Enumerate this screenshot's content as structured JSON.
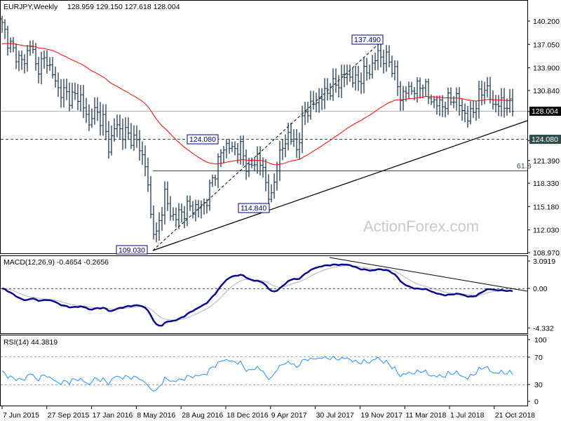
{
  "header": {
    "symbol_timeframe": "EURJPY,Weekly",
    "ohlc": "128.959 129.150 127.618 128.004"
  },
  "watermark": "ActionForex.com",
  "colors": {
    "bars": "#1c3a58",
    "ma": "#ff0000",
    "macd": "#0a0a8c",
    "signal": "#b4b4b4",
    "rsi": "#1e90ff",
    "current_price_bg": "#000000",
    "level_bg": "#2f4f4f"
  },
  "chart_data": [
    {
      "type": "ohlc",
      "title": "EURJPY,Weekly",
      "y_ticks": [
        "140.200",
        "137.050",
        "133.900",
        "130.840",
        "128.004",
        "124.080",
        "121.390",
        "118.330",
        "115.180",
        "112.030",
        "108.970"
      ],
      "ylim": [
        108.97,
        140.2
      ],
      "x_ticks": [
        "7 Jun 2015",
        "27 Sep 2015",
        "17 Jan 2016",
        "8 May 2016",
        "28 Aug 2016",
        "18 Dec 2016",
        "9 Apr 2017",
        "30 Jul 2017",
        "19 Nov 2017",
        "11 Mar 2018",
        "1 Jul 2018",
        "21 Oct 2018"
      ],
      "current_price": "128.004",
      "approx_closes": [
        [
          "2015-06-07",
          139.5
        ],
        [
          "2015-07-05",
          136
        ],
        [
          "2015-08-02",
          134.5
        ],
        [
          "2015-08-16",
          137.5
        ],
        [
          "2015-08-30",
          134
        ],
        [
          "2015-09-27",
          135
        ],
        [
          "2015-10-25",
          131
        ],
        [
          "2015-11-22",
          130
        ],
        [
          "2015-12-20",
          130
        ],
        [
          "2016-01-10",
          126
        ],
        [
          "2016-01-17",
          128
        ],
        [
          "2016-02-14",
          127
        ],
        [
          "2016-02-28",
          123
        ],
        [
          "2016-03-13",
          126
        ],
        [
          "2016-04-10",
          125
        ],
        [
          "2016-05-08",
          124
        ],
        [
          "2016-05-29",
          121
        ],
        [
          "2016-06-12",
          114
        ],
        [
          "2016-06-26",
          111
        ],
        [
          "2016-07-03",
          113
        ],
        [
          "2016-07-17",
          117
        ],
        [
          "2016-07-31",
          114
        ],
        [
          "2016-08-21",
          114
        ],
        [
          "2016-09-11",
          115
        ],
        [
          "2016-10-09",
          115
        ],
        [
          "2016-10-30",
          116
        ],
        [
          "2016-11-13",
          119
        ],
        [
          "2016-11-27",
          121
        ],
        [
          "2016-12-11",
          123.5
        ],
        [
          "2017-01-01",
          123
        ],
        [
          "2017-01-22",
          123
        ],
        [
          "2017-02-12",
          120
        ],
        [
          "2017-03-05",
          122
        ],
        [
          "2017-03-19",
          120
        ],
        [
          "2017-04-02",
          117
        ],
        [
          "2017-04-09",
          116
        ],
        [
          "2017-04-23",
          121
        ],
        [
          "2017-05-07",
          123
        ],
        [
          "2017-05-21",
          125
        ],
        [
          "2017-06-11",
          123
        ],
        [
          "2017-07-02",
          128
        ],
        [
          "2017-07-23",
          129
        ],
        [
          "2017-08-13",
          130
        ],
        [
          "2017-09-03",
          131
        ],
        [
          "2017-09-24",
          132
        ],
        [
          "2017-10-15",
          133
        ],
        [
          "2017-11-05",
          132
        ],
        [
          "2017-11-26",
          133
        ],
        [
          "2017-12-17",
          134
        ],
        [
          "2017-12-31",
          136
        ],
        [
          "2018-01-14",
          135
        ],
        [
          "2018-01-28",
          135
        ],
        [
          "2018-02-11",
          133
        ],
        [
          "2018-02-25",
          130
        ],
        [
          "2018-03-18",
          131
        ],
        [
          "2018-04-08",
          131
        ],
        [
          "2018-04-22",
          132
        ],
        [
          "2018-05-06",
          130
        ],
        [
          "2018-05-27",
          129
        ],
        [
          "2018-06-17",
          129
        ],
        [
          "2018-07-08",
          130
        ],
        [
          "2018-07-22",
          129
        ],
        [
          "2018-08-12",
          127
        ],
        [
          "2018-09-02",
          129
        ],
        [
          "2018-09-23",
          131.5
        ],
        [
          "2018-10-14",
          129
        ],
        [
          "2018-11-04",
          129
        ],
        [
          "2018-11-18",
          129
        ],
        [
          "2018-12-02",
          128.004
        ]
      ],
      "annotations": {
        "high": "137.490",
        "level": "124.080",
        "pivot_low": "114.840",
        "low": "109.030",
        "fib": "61.8"
      }
    },
    {
      "type": "line",
      "title": "MACD(12,26,9) -0.4654 -0.2656",
      "y_ticks": [
        "3.0919",
        "0.00",
        "-4.332"
      ],
      "ylim": [
        -4.332,
        3.0919
      ]
    },
    {
      "type": "line",
      "title": "RSI(14) 44.3819",
      "y_ticks": [
        "100",
        "70",
        "30",
        "0"
      ],
      "ylim": [
        0,
        100
      ]
    }
  ]
}
